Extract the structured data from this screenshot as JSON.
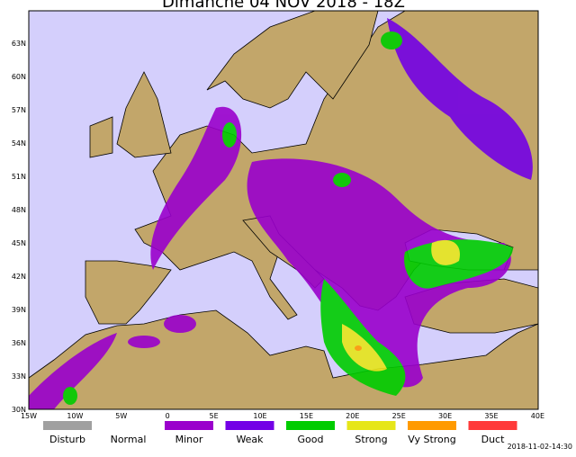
{
  "title": "Dimanche 04 NOV 2018 - 18Z",
  "lat_labels": [
    "63N",
    "60N",
    "57N",
    "54N",
    "51N",
    "48N",
    "45N",
    "42N",
    "39N",
    "36N",
    "33N",
    "30N"
  ],
  "lon_labels": [
    "15W",
    "10W",
    "5W",
    "0",
    "5E",
    "10E",
    "15E",
    "20E",
    "25E",
    "30E",
    "35E",
    "40E"
  ],
  "legend": [
    {
      "label": "Disturb",
      "color": "#a0a0a0"
    },
    {
      "label": "Normal",
      "color": "#ffffff"
    },
    {
      "label": "Minor",
      "color": "#9a00cc"
    },
    {
      "label": "Weak",
      "color": "#7300e6"
    },
    {
      "label": "Good",
      "color": "#00cc00"
    },
    {
      "label": "Strong",
      "color": "#e6e619"
    },
    {
      "label": "Vy Strong",
      "color": "#ff9a00"
    },
    {
      "label": "Duct",
      "color": "#ff3a3a"
    }
  ],
  "timestamp": "2018-11-02-14:30"
}
